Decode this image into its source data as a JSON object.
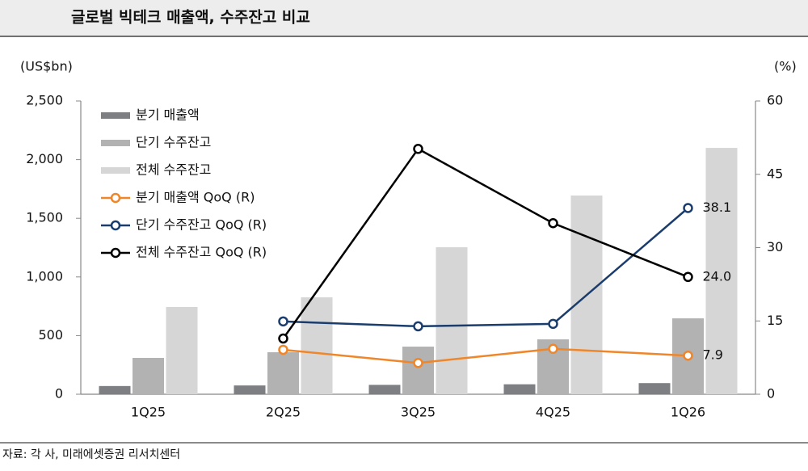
{
  "chart_data": {
    "type": "bar",
    "title": "글로벌 빅테크 매출액, 수주잔고 비교",
    "y_label": "(US$bn)",
    "y2_label": "(%)",
    "source": "자료: 각 사, 미래에셋증권 리서치센터",
    "categories": [
      "1Q25",
      "2Q25",
      "3Q25",
      "4Q25",
      "1Q26"
    ],
    "ylim": [
      0,
      2500
    ],
    "yticks": [
      0,
      500,
      {
        "value": 1000,
        "label": "1,000"
      },
      {
        "value": 1500,
        "label": "1,500"
      },
      {
        "value": 2000,
        "label": "2,000"
      },
      {
        "value": 2500,
        "label": "2,500"
      }
    ],
    "y2lim": [
      0,
      60
    ],
    "y2ticks": [
      0,
      15,
      30,
      45,
      60
    ],
    "series": [
      {
        "name": "분기 매출액",
        "type": "bar",
        "color": "#7d7f83",
        "values": [
          70,
          75,
          80,
          85,
          95
        ]
      },
      {
        "name": "단기 수주잔고",
        "type": "bar",
        "color": "#b2b2b2",
        "values": [
          310,
          358,
          406,
          468,
          647
        ]
      },
      {
        "name": "전체 수주잔고",
        "type": "bar",
        "color": "#d6d6d6",
        "values": [
          744,
          826,
          1253,
          1694,
          2100
        ]
      },
      {
        "name": "분기 매출액 QoQ (R)",
        "type": "line",
        "axis": "y2",
        "color": "#f0862a",
        "values": [
          null,
          9.1,
          6.4,
          9.3,
          7.9
        ],
        "value_labels": [
          null,
          null,
          null,
          null,
          "7.9"
        ]
      },
      {
        "name": "단기 수주잔고 QoQ (R)",
        "type": "line",
        "axis": "y2",
        "color": "#1b3d6d",
        "values": [
          null,
          14.9,
          13.9,
          14.4,
          38.1
        ],
        "value_labels": [
          null,
          null,
          null,
          null,
          "38.1"
        ]
      },
      {
        "name": "전체 수주잔고 QoQ (R)",
        "type": "line",
        "axis": "y2",
        "color": "#000000",
        "values": [
          null,
          11.4,
          50.2,
          35.0,
          24.0
        ],
        "value_labels": [
          null,
          null,
          null,
          null,
          "24.0"
        ]
      }
    ]
  }
}
